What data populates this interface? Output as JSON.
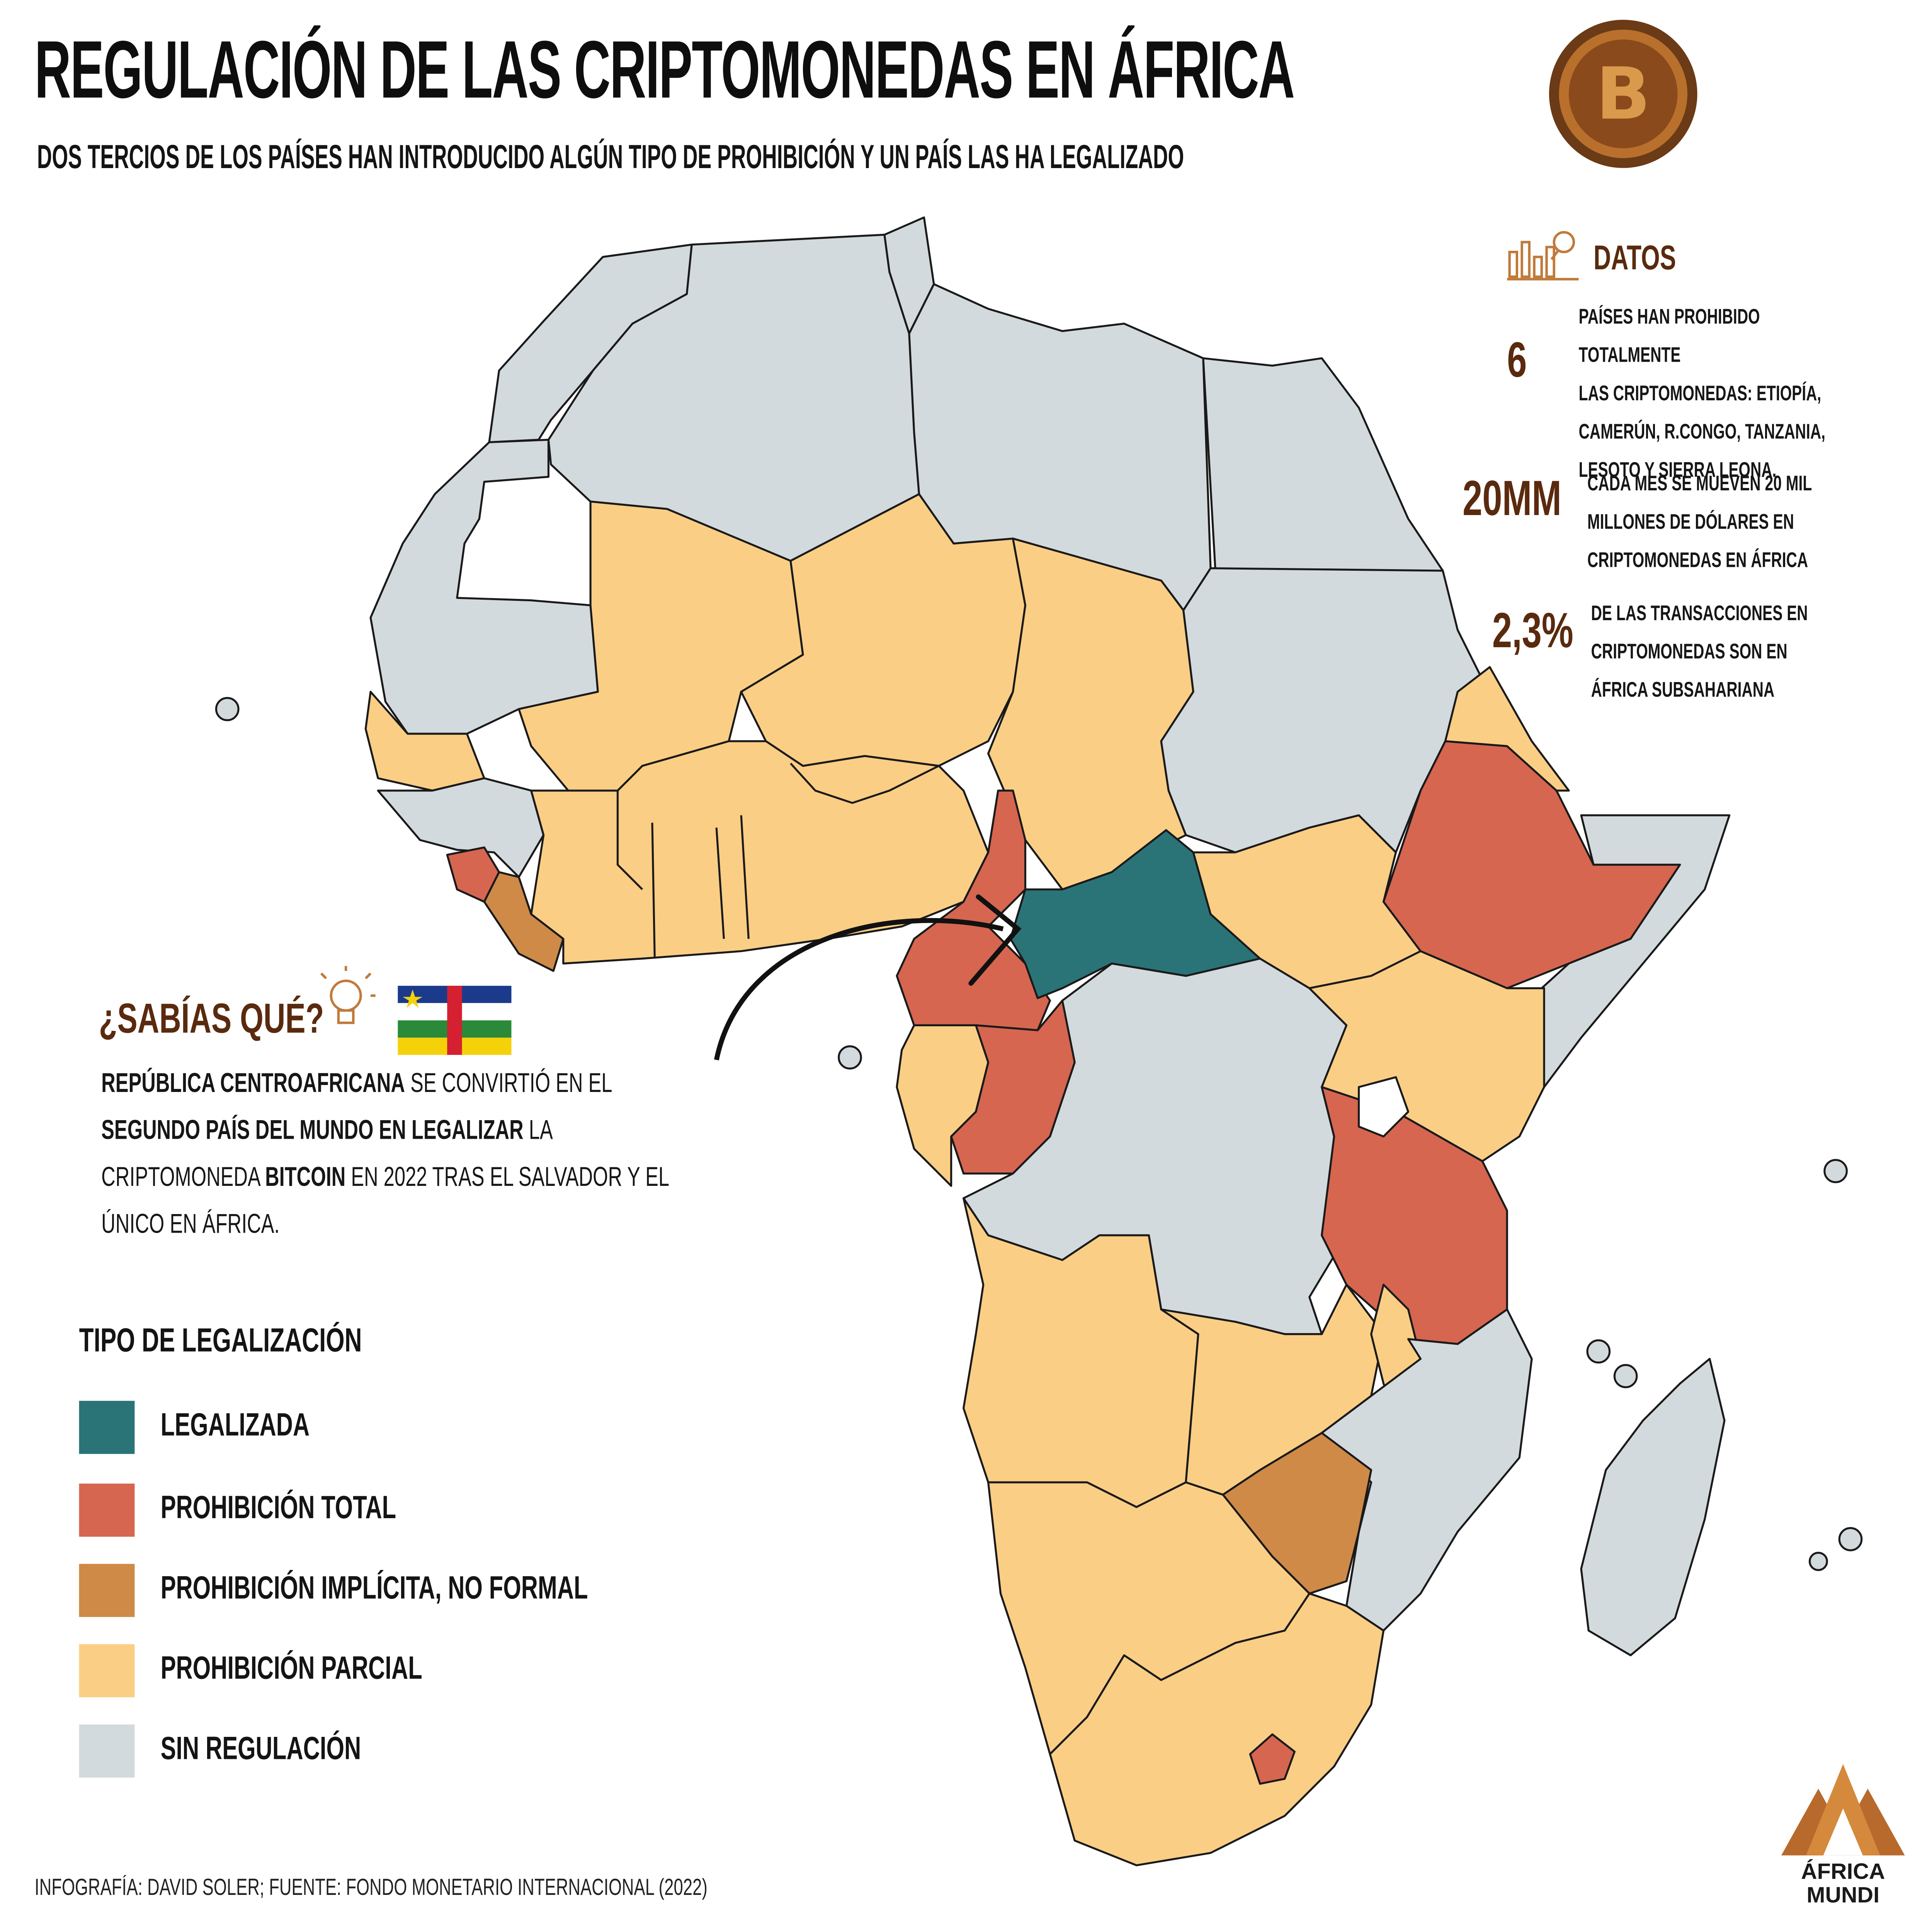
{
  "title": "REGULACIÓN DE LAS CRIPTOMONEDAS EN ÁFRICA",
  "subtitle": "DOS TERCIOS DE LOS PAÍSES HAN INTRODUCIDO ALGÚN TIPO DE PROHIBICIÓN Y UN PAÍS LAS HA LEGALIZADO",
  "coin": {
    "symbol": "B",
    "icon": "bitcoin-coin-icon"
  },
  "datos": {
    "heading": "DATOS",
    "icon": "chart-magnifier-icon",
    "stats": [
      {
        "number": "6",
        "text": "PAÍSES HAN PROHIBIDO TOTALMENTE\nLAS CRIPTOMONEDAS: ETIOPÍA,\nCAMERÚN, R.CONGO, TANZANIA,\nLESOTO Y SIERRA LEONA."
      },
      {
        "number": "20MM",
        "text": "CADA MES SE MUEVEN 20 MIL\nMILLONES DE DÓLARES EN\nCRIPTOMONEDAS EN ÁFRICA"
      },
      {
        "number": "2,3%",
        "text": "DE LAS TRANSACCIONES EN\nCRIPTOMONEDAS SON EN\nÁFRICA SUBSAHARIANA"
      }
    ]
  },
  "sabias": {
    "heading": "¿SABÍAS QUÉ?",
    "icon": "lightbulb-icon",
    "flag": "central-african-republic-flag",
    "fact": {
      "p1": "REPÚBLICA CENTROAFRICANA",
      "p2": " SE CONVIRTIÓ EN EL ",
      "p3": "SEGUNDO PAÍS DEL MUNDO EN LEGALIZAR",
      "p4": " LA CRIPTOMONEDA ",
      "p5": "BITCOIN",
      "p6": " EN 2022 TRAS EL SALVADOR Y EL ÚNICO EN ÁFRICA."
    }
  },
  "legend": {
    "title": "TIPO DE LEGALIZACIÓN",
    "items": [
      {
        "label": "LEGALIZADA",
        "color": "#2a7478"
      },
      {
        "label": "PROHIBICIÓN TOTAL",
        "color": "#d66650"
      },
      {
        "label": "PROHIBICIÓN IMPLÍCITA, NO FORMAL",
        "color": "#cf8a48"
      },
      {
        "label": "PROHIBICIÓN PARCIAL",
        "color": "#fbce85"
      },
      {
        "label": "SIN REGULACIÓN",
        "color": "#d3dadd"
      }
    ]
  },
  "credit": "INFOGRAFÍA: DAVID SOLER; FUENTE: FONDO MONETARIO INTERNACIONAL (2022)",
  "brand": {
    "text": "ÁFRICA\nMUNDI",
    "icon": "africa-mundi-logo"
  }
}
